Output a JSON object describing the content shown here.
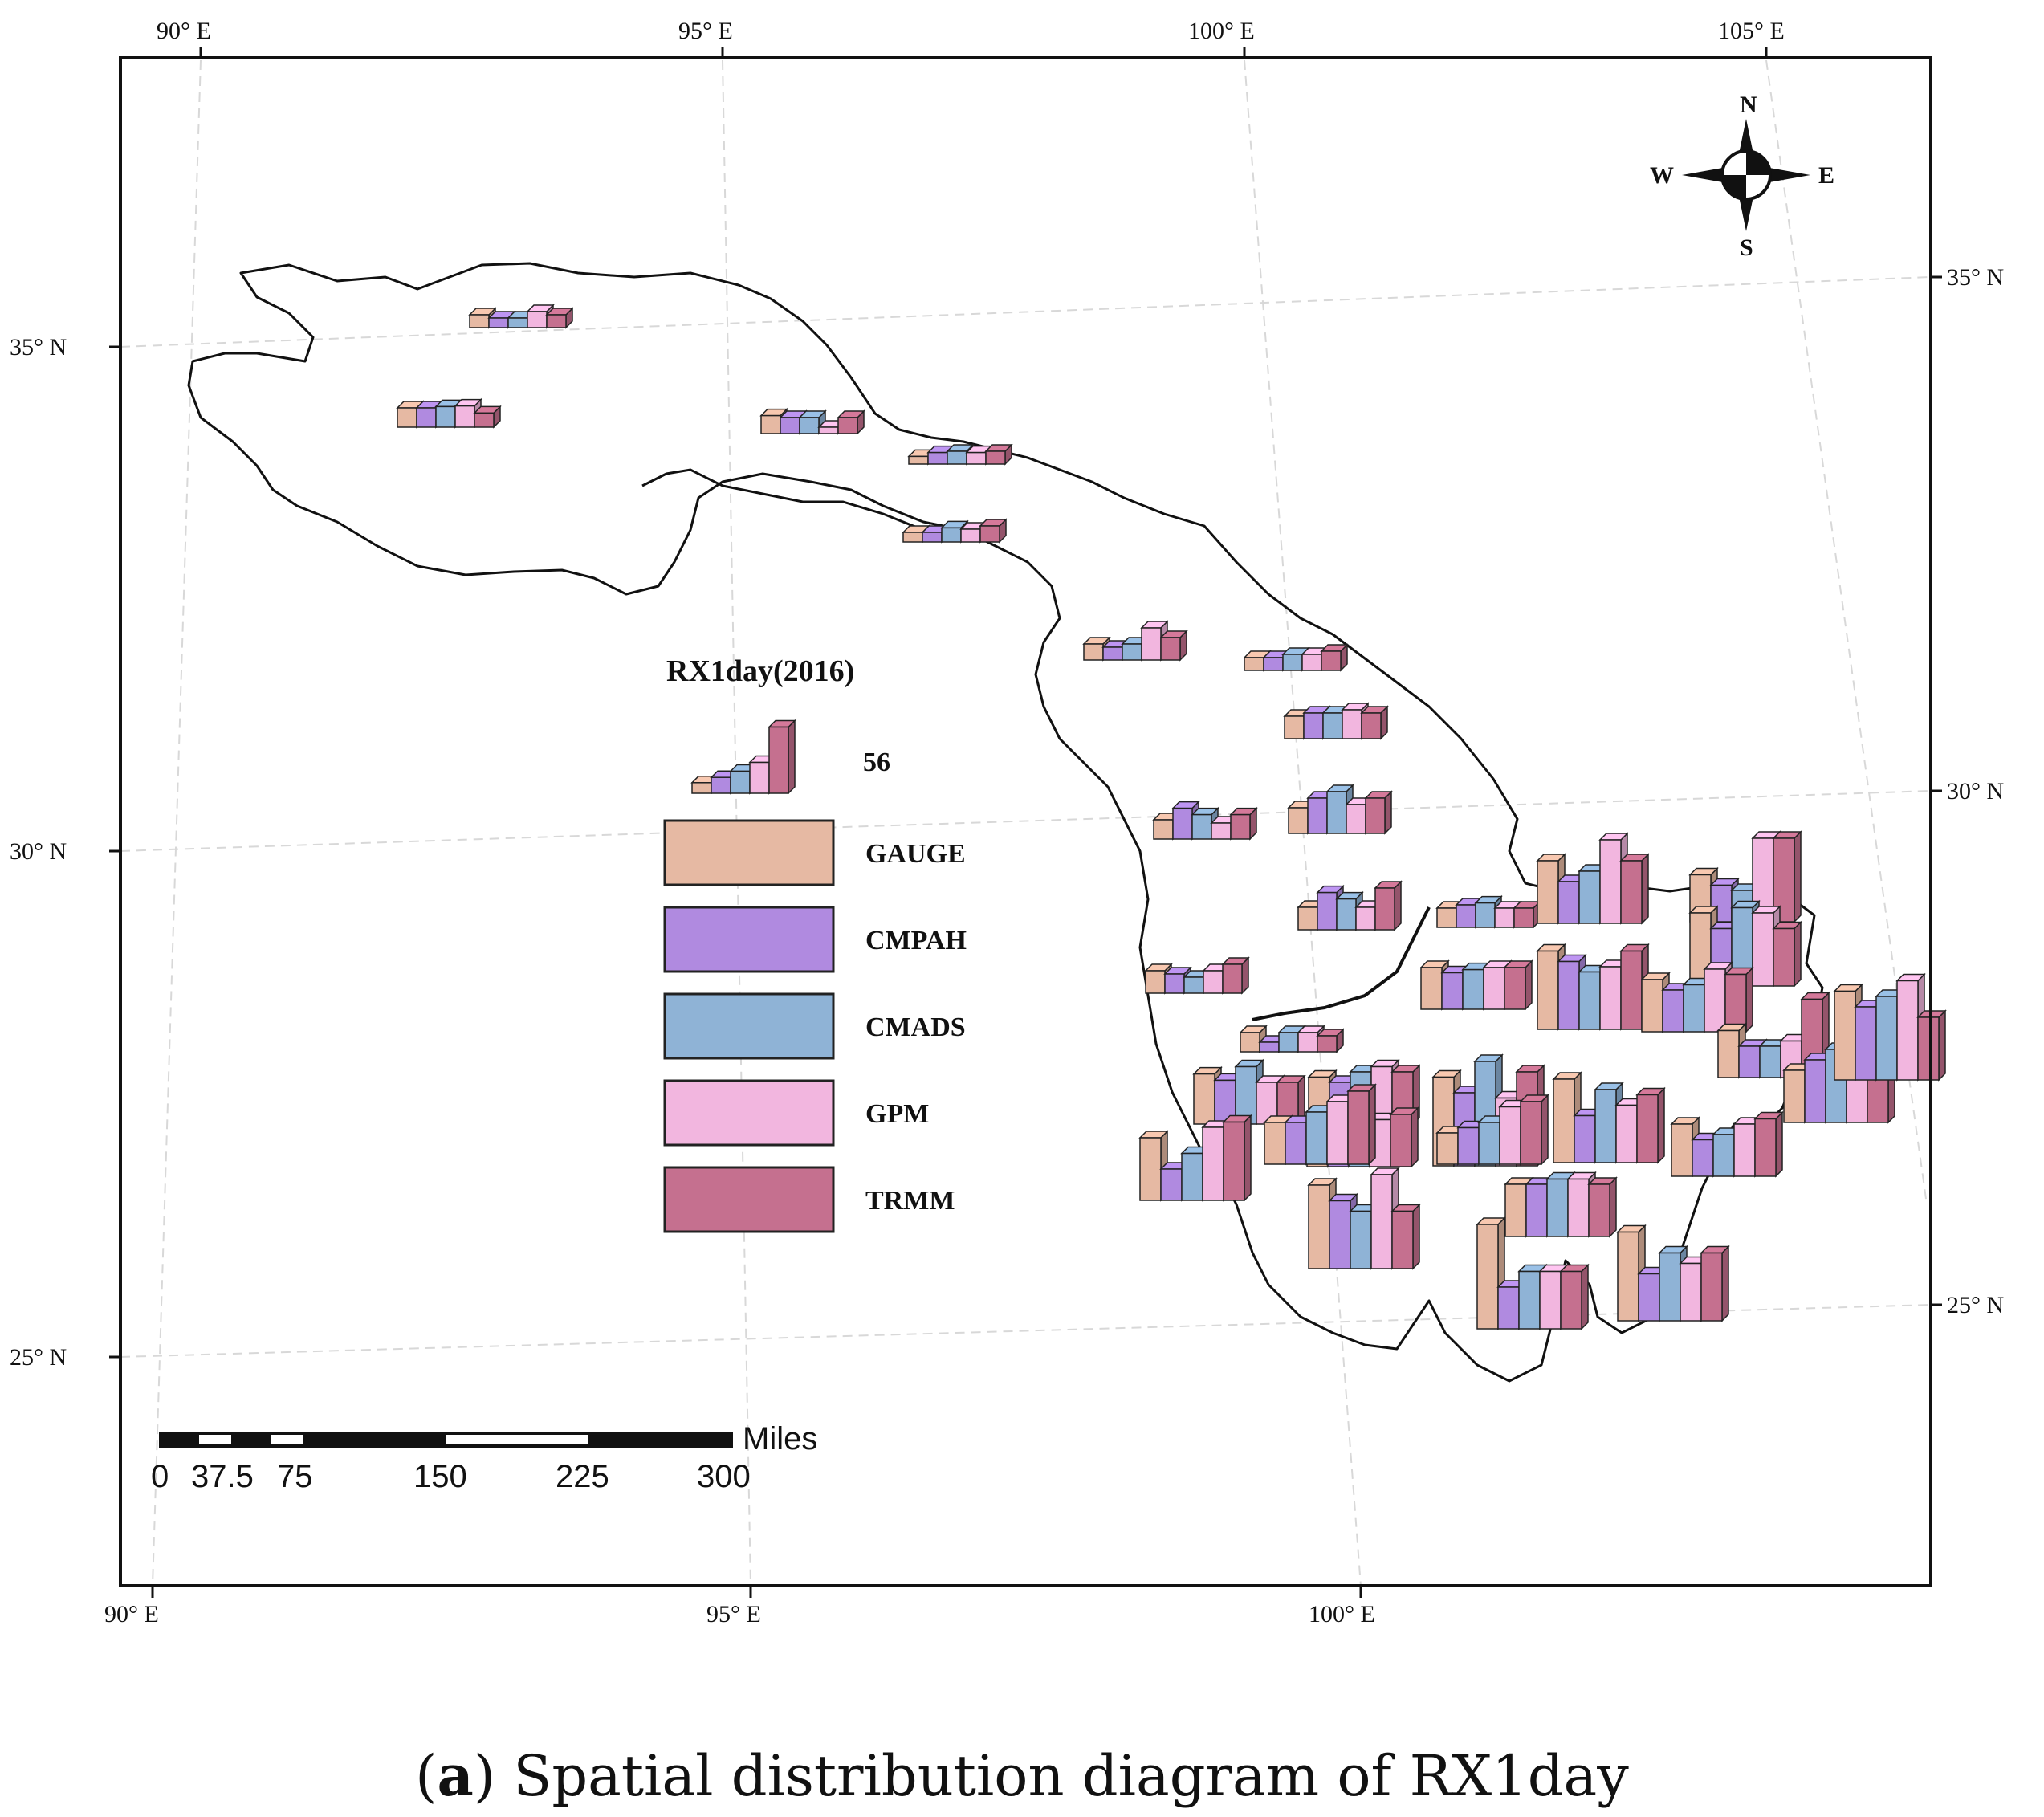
{
  "figure": {
    "caption_letter": "a",
    "caption_text": "Spatial distribution diagram of RX1day"
  },
  "map": {
    "top_lon_ticks": [
      "90° E",
      "95° E",
      "100° E",
      "105° E"
    ],
    "bottom_lon_ticks": [
      "90° E",
      "95° E",
      "100° E"
    ],
    "left_lat_ticks": [
      "35° N",
      "30° N",
      "25° N"
    ],
    "right_lat_ticks": [
      "35° N",
      "30° N",
      "25° N"
    ],
    "compass": {
      "n": "N",
      "s": "S",
      "e": "E",
      "w": "W"
    },
    "scale_bar": {
      "unit": "Miles",
      "labels": [
        "0",
        "37.5",
        "75",
        "150",
        "225",
        "300"
      ]
    }
  },
  "legend": {
    "title": "RX1day(2016)",
    "reference_value": "56",
    "series": [
      {
        "name": "GAUGE",
        "color": "#e6b9a3"
      },
      {
        "name": "CMPAH",
        "color": "#b08ae0"
      },
      {
        "name": "CMADS",
        "color": "#8fb3d6"
      },
      {
        "name": "GPM",
        "color": "#f2b6df"
      },
      {
        "name": "TRMM",
        "color": "#c5708f"
      }
    ]
  },
  "stations": [
    {
      "values": [
        0.2,
        0.15,
        0.15,
        0.25,
        0.2
      ]
    },
    {
      "values": [
        0.3,
        0.3,
        0.32,
        0.33,
        0.22
      ]
    },
    {
      "values": [
        0.28,
        0.25,
        0.25,
        0.1,
        0.25
      ]
    },
    {
      "values": [
        0.12,
        0.18,
        0.2,
        0.18,
        0.2
      ]
    },
    {
      "values": [
        0.15,
        0.15,
        0.22,
        0.2,
        0.25
      ]
    },
    {
      "values": [
        0.25,
        0.2,
        0.25,
        0.5,
        0.35
      ]
    },
    {
      "values": [
        0.2,
        0.2,
        0.25,
        0.25,
        0.3
      ]
    },
    {
      "values": [
        0.35,
        0.4,
        0.4,
        0.45,
        0.4
      ]
    },
    {
      "values": [
        0.3,
        0.48,
        0.38,
        0.25,
        0.38
      ]
    },
    {
      "values": [
        0.4,
        0.55,
        0.65,
        0.45,
        0.55
      ]
    },
    {
      "values": [
        0.35,
        0.58,
        0.48,
        0.35,
        0.65
      ]
    },
    {
      "values": [
        0.3,
        0.35,
        0.38,
        0.3,
        0.3
      ]
    },
    {
      "values": [
        0.35,
        0.3,
        0.25,
        0.35,
        0.45
      ]
    },
    {
      "values": [
        0.3,
        0.15,
        0.3,
        0.3,
        0.25
      ]
    },
    {
      "values": [
        0.48,
        0.42,
        0.55,
        0.4,
        0.4
      ]
    },
    {
      "values": [
        0.4,
        0.35,
        0.38,
        0.4,
        0.4
      ]
    },
    {
      "values": [
        0.45,
        0.4,
        0.5,
        0.55,
        0.5
      ]
    },
    {
      "values": [
        0.6,
        0.4,
        0.5,
        0.8,
        0.6
      ]
    },
    {
      "values": [
        0.45,
        0.35,
        0.3,
        0.8,
        0.8
      ]
    },
    {
      "values": [
        0.7,
        0.55,
        0.75,
        0.7,
        0.55
      ]
    },
    {
      "values": [
        0.75,
        0.65,
        0.55,
        0.6,
        0.75
      ]
    },
    {
      "values": [
        0.5,
        0.4,
        0.45,
        0.6,
        0.55
      ]
    },
    {
      "values": [
        0.45,
        0.3,
        0.3,
        0.35,
        0.75
      ]
    },
    {
      "values": [
        0.5,
        0.6,
        0.7,
        0.65,
        0.7
      ]
    },
    {
      "values": [
        0.85,
        0.7,
        1.0,
        0.65,
        0.9
      ]
    },
    {
      "values": [
        0.8,
        0.45,
        0.7,
        0.55,
        0.65
      ]
    },
    {
      "values": [
        0.5,
        0.35,
        0.4,
        0.5,
        0.55
      ]
    },
    {
      "values": [
        0.4,
        0.35,
        0.35,
        0.45,
        0.5
      ]
    },
    {
      "values": [
        0.3,
        0.35,
        0.4,
        0.55,
        0.6
      ]
    },
    {
      "values": [
        0.5,
        0.5,
        0.55,
        0.55,
        0.5
      ]
    },
    {
      "values": [
        0.8,
        0.65,
        0.55,
        0.9,
        0.55
      ]
    },
    {
      "values": [
        1.0,
        0.4,
        0.55,
        0.55,
        0.55
      ]
    },
    {
      "values": [
        0.85,
        0.45,
        0.65,
        0.55,
        0.65
      ]
    },
    {
      "values": [
        0.4,
        0.4,
        0.5,
        0.6,
        0.7
      ]
    },
    {
      "values": [
        0.6,
        0.3,
        0.45,
        0.7,
        0.75
      ]
    },
    {
      "values": [
        0.85,
        0.7,
        0.8,
        0.95,
        0.6
      ]
    }
  ]
}
